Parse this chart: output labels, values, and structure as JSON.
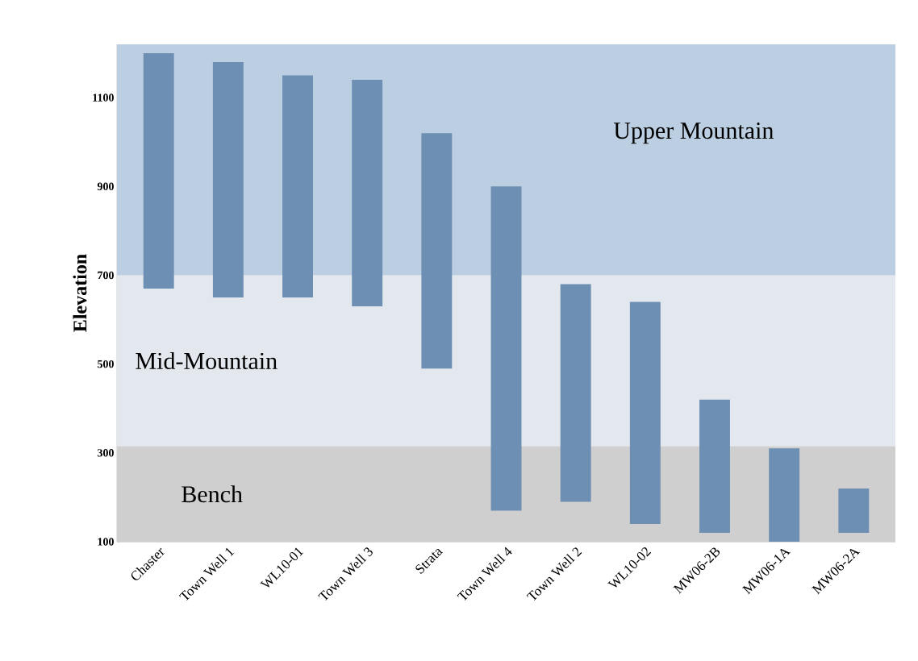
{
  "chart_data": {
    "type": "bar",
    "ylabel": "Elevation",
    "categories": [
      "Chaster",
      "Town Well 1",
      "WL10-01",
      "Town Well 3",
      "Strata",
      "Town Well 4",
      "Town Well 2",
      "WL10-02",
      "MW06-2B",
      "MW06-1A",
      "MW06-2A"
    ],
    "base": [
      670,
      650,
      650,
      630,
      490,
      170,
      190,
      140,
      120,
      100,
      120
    ],
    "values": [
      530,
      530,
      500,
      510,
      530,
      730,
      490,
      500,
      300,
      210,
      100
    ],
    "color": "#6d8fb3",
    "ylim": [
      100,
      1220
    ],
    "yticks": [
      100,
      300,
      500,
      700,
      900,
      1100
    ],
    "grid": "y",
    "bands": [
      {
        "axis": "y",
        "from": 700,
        "to": 1220,
        "label": "Upper Mountain",
        "color": "#bccfe2"
      },
      {
        "axis": "y",
        "from": 315,
        "to": 700,
        "label": "Mid-Mountain",
        "color": "#e3e8ee"
      },
      {
        "axis": "y",
        "from": 100,
        "to": 315,
        "label": "Bench",
        "color": "#cfcfcf"
      }
    ]
  }
}
